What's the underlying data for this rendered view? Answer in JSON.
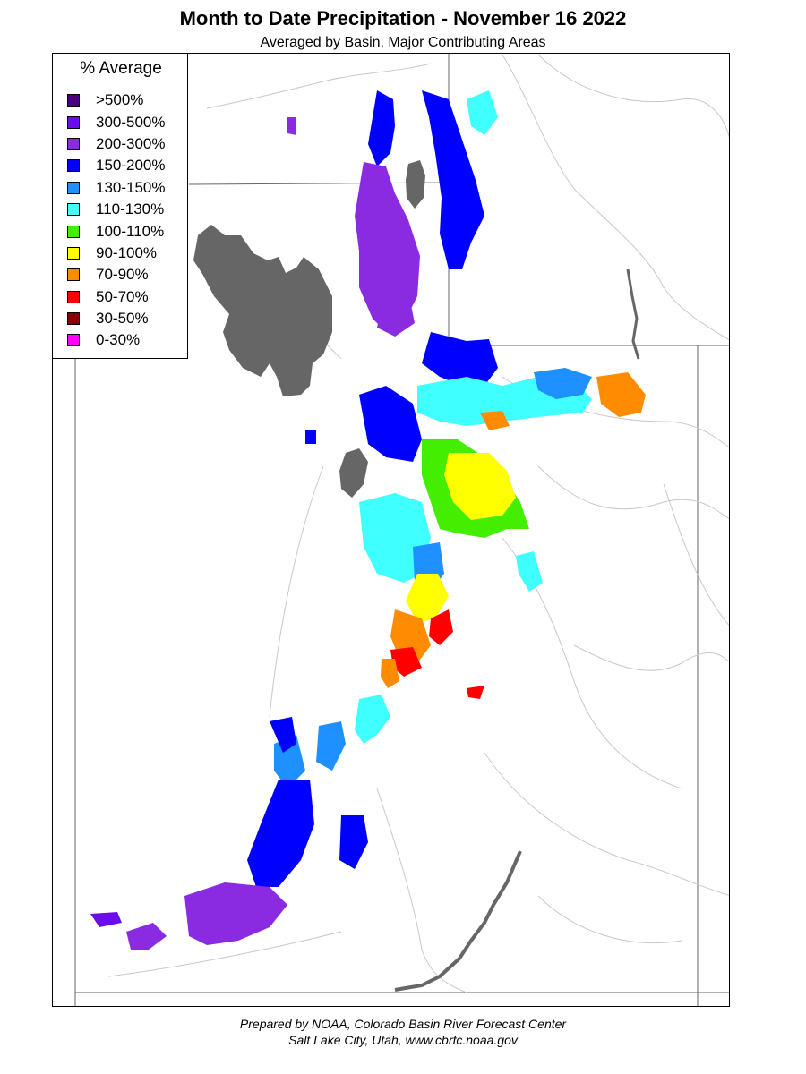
{
  "title": "Month to Date Precipitation - November 16 2022",
  "subtitle": "Averaged by Basin, Major Contributing Areas",
  "legend": {
    "title": "% Average",
    "items": [
      {
        "label": ">500%",
        "color": "#4b0082"
      },
      {
        "label": "300-500%",
        "color": "#6a0dea"
      },
      {
        "label": "200-300%",
        "color": "#8a2be2"
      },
      {
        "label": "150-200%",
        "color": "#0000ff"
      },
      {
        "label": "130-150%",
        "color": "#1e90ff"
      },
      {
        "label": "110-130%",
        "color": "#40ffff"
      },
      {
        "label": "100-110%",
        "color": "#44ee00"
      },
      {
        "label": "90-100%",
        "color": "#ffff00"
      },
      {
        "label": "70-90%",
        "color": "#ff8c00"
      },
      {
        "label": "50-70%",
        "color": "#ff0000"
      },
      {
        "label": "30-50%",
        "color": "#8b0000"
      },
      {
        "label": "0-30%",
        "color": "#ff00ff"
      }
    ]
  },
  "water_color": "#666666",
  "footer": {
    "line1": "Prepared by NOAA, Colorado Basin River Forecast Center",
    "line2": "Salt Lake City, Utah, www.cbrfc.noaa.gov"
  }
}
